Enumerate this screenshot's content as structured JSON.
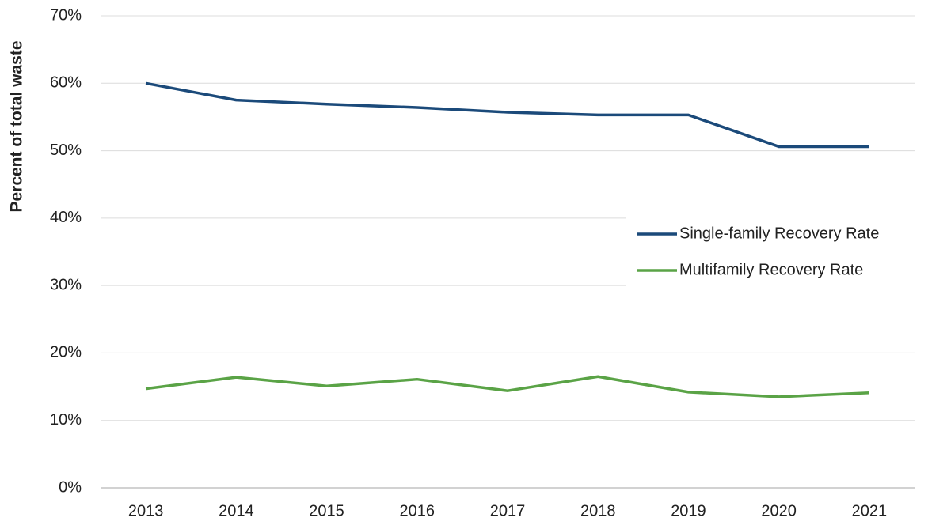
{
  "chart_data": {
    "type": "line",
    "ylabel": "Percent of total waste",
    "categories": [
      "2013",
      "2014",
      "2015",
      "2016",
      "2017",
      "2018",
      "2019",
      "2020",
      "2021"
    ],
    "series": [
      {
        "name": "Single-family Recovery Rate",
        "color": "#1b4a7a",
        "values": [
          60.0,
          57.5,
          56.9,
          56.4,
          55.7,
          55.3,
          55.3,
          50.6,
          50.6
        ]
      },
      {
        "name": "Multifamily Recovery Rate",
        "color": "#5aa346",
        "values": [
          14.7,
          16.4,
          15.1,
          16.1,
          14.4,
          16.5,
          14.2,
          13.5,
          14.1
        ]
      }
    ],
    "ylim": [
      0,
      70
    ],
    "yticks": [
      {
        "value": 0,
        "label": "0%"
      },
      {
        "value": 10,
        "label": "10%"
      },
      {
        "value": 20,
        "label": "20%"
      },
      {
        "value": 30,
        "label": "30%"
      },
      {
        "value": 40,
        "label": "40%"
      },
      {
        "value": 50,
        "label": "50%"
      },
      {
        "value": 60,
        "label": "60%"
      },
      {
        "value": 70,
        "label": "70%"
      }
    ],
    "grid": true,
    "legend": "right"
  }
}
